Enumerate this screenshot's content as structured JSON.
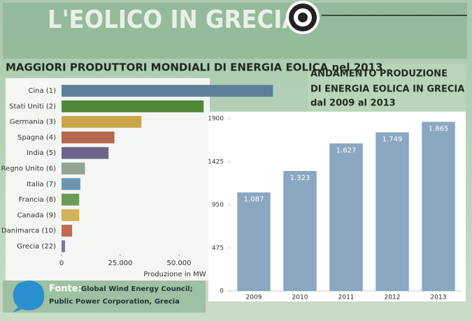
{
  "header": {
    "title": "L'EOLICO IN GRECIA"
  },
  "source": {
    "label": "Fonte:",
    "lines": [
      "Global Wind Energy Council;",
      "Public Power Corporation, Grecia"
    ]
  },
  "chart_data": [
    {
      "type": "bar",
      "orientation": "horizontal",
      "title": "MAGGIORI PRODUTTORI MONDIALI DI ENERGIA EOLICA nel 2013",
      "x_label": "Produzione in MW",
      "categories": [
        "Cina (1)",
        "Stati Uniti (2)",
        "Germania (3)",
        "Spagna (4)",
        "India (5)",
        "Regno Unito (6)",
        "Italia (7)",
        "Francia (8)",
        "Canada (9)",
        "Danimarca (10)",
        "Grecia (22)"
      ],
      "values": [
        90000,
        60500,
        34000,
        22500,
        20000,
        10000,
        8000,
        7500,
        7500,
        4500,
        1500
      ],
      "colors": [
        "#5d7f99",
        "#4f8a3c",
        "#c9a54a",
        "#b8664f",
        "#6c6589",
        "#92a394",
        "#6b96b3",
        "#6c9a58",
        "#d2b25a",
        "#c26a54",
        "#7c7896"
      ],
      "xlim": [
        0,
        100000
      ],
      "xticks": [
        0,
        {
          "value": 25000,
          "label": "25.000"
        },
        {
          "value": 50000,
          "label": "50.000"
        }
      ]
    },
    {
      "type": "bar",
      "title": [
        "ANDAMENTO PRODUZIONE",
        "DI ENERGIA EOLICA IN GRECIA",
        "dal 2009 al 2013"
      ],
      "categories": [
        "2009",
        "2010",
        "2011",
        "2012",
        "2013"
      ],
      "values": [
        1087,
        1323,
        1627,
        1749,
        1865
      ],
      "value_labels": [
        "1.087",
        "1.323",
        "1.627",
        "1.749",
        "1.865"
      ],
      "color": "#8ba7c2",
      "ylim": [
        0,
        1900
      ],
      "yticks": [
        0,
        475,
        950,
        1425,
        1900
      ]
    }
  ]
}
